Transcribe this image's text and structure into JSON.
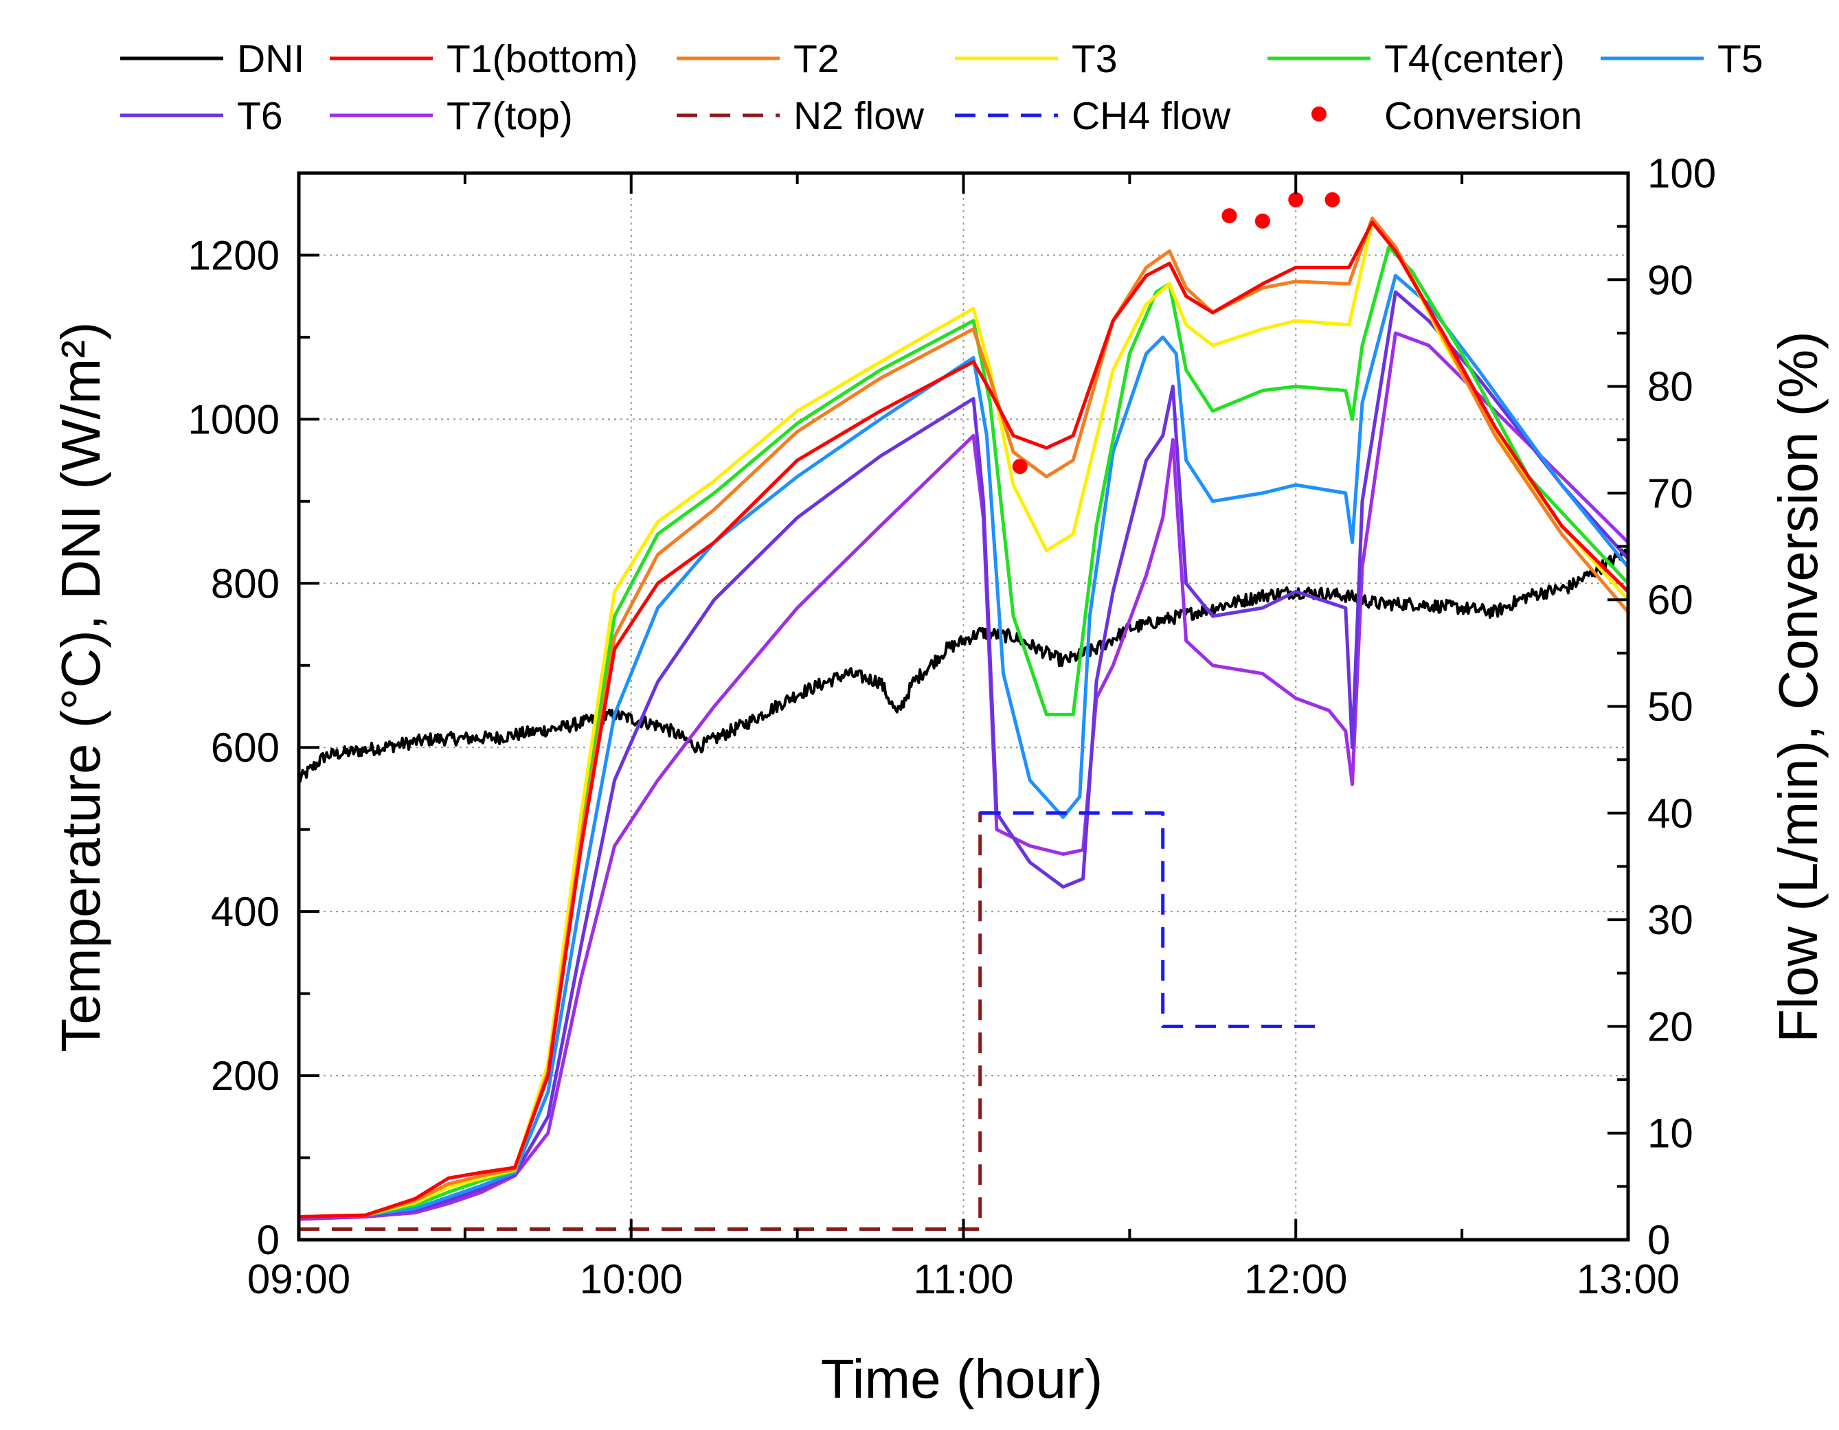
{
  "chart_data": {
    "type": "line",
    "xlabel": "Time (hour)",
    "ylabel": "Temperature (°C), DNI (W/m²)",
    "ylabel_right": "Flow (L/min), Conversion (%)",
    "x_ticks": [
      "09:00",
      "10:00",
      "11:00",
      "12:00",
      "13:00"
    ],
    "x_range_hours": [
      9,
      13
    ],
    "ylim": [
      0,
      1300
    ],
    "y_ticks": [
      0,
      200,
      400,
      600,
      800,
      1000,
      1200
    ],
    "ylim_right": [
      0,
      100
    ],
    "y_ticks_right": [
      0,
      10,
      20,
      30,
      40,
      50,
      60,
      70,
      80,
      90,
      100
    ],
    "legend": [
      "DNI",
      "T1(bottom)",
      "T2",
      "T3",
      "T4(center)",
      "T5",
      "T6",
      "T7(top)",
      "N2 flow",
      "CH4 flow",
      "Conversion"
    ],
    "series": [
      {
        "name": "DNI",
        "axis": "left",
        "color": "#000000",
        "noise": 8,
        "points": [
          [
            9.0,
            560
          ],
          [
            9.08,
            590
          ],
          [
            9.25,
            600
          ],
          [
            9.4,
            610
          ],
          [
            9.6,
            612
          ],
          [
            9.8,
            625
          ],
          [
            9.95,
            640
          ],
          [
            10.1,
            625
          ],
          [
            10.2,
            600
          ],
          [
            10.35,
            630
          ],
          [
            10.5,
            665
          ],
          [
            10.65,
            690
          ],
          [
            10.75,
            680
          ],
          [
            10.8,
            640
          ],
          [
            10.85,
            680
          ],
          [
            10.95,
            720
          ],
          [
            11.05,
            740
          ],
          [
            11.15,
            735
          ],
          [
            11.25,
            715
          ],
          [
            11.3,
            705
          ],
          [
            11.4,
            720
          ],
          [
            11.5,
            745
          ],
          [
            11.6,
            755
          ],
          [
            11.75,
            770
          ],
          [
            11.9,
            785
          ],
          [
            12.0,
            790
          ],
          [
            12.15,
            785
          ],
          [
            12.25,
            775
          ],
          [
            12.35,
            775
          ],
          [
            12.5,
            770
          ],
          [
            12.6,
            765
          ],
          [
            12.7,
            785
          ],
          [
            12.82,
            795
          ],
          [
            12.9,
            815
          ],
          [
            13.0,
            840
          ]
        ]
      },
      {
        "name": "T1(bottom)",
        "axis": "left",
        "color": "#ff0000",
        "points": [
          [
            9.0,
            28
          ],
          [
            9.2,
            30
          ],
          [
            9.35,
            50
          ],
          [
            9.45,
            75
          ],
          [
            9.55,
            82
          ],
          [
            9.65,
            88
          ],
          [
            9.75,
            200
          ],
          [
            9.85,
            480
          ],
          [
            9.95,
            720
          ],
          [
            10.08,
            800
          ],
          [
            10.25,
            850
          ],
          [
            10.5,
            950
          ],
          [
            10.75,
            1010
          ],
          [
            11.03,
            1070
          ],
          [
            11.08,
            1035
          ],
          [
            11.15,
            980
          ],
          [
            11.25,
            965
          ],
          [
            11.33,
            980
          ],
          [
            11.45,
            1120
          ],
          [
            11.55,
            1175
          ],
          [
            11.62,
            1190
          ],
          [
            11.67,
            1150
          ],
          [
            11.75,
            1130
          ],
          [
            11.9,
            1165
          ],
          [
            12.0,
            1185
          ],
          [
            12.16,
            1185
          ],
          [
            12.23,
            1240
          ],
          [
            12.3,
            1205
          ],
          [
            12.45,
            1100
          ],
          [
            12.6,
            990
          ],
          [
            12.8,
            870
          ],
          [
            13.0,
            790
          ]
        ]
      },
      {
        "name": "T2",
        "axis": "left",
        "color": "#f57d1f",
        "points": [
          [
            9.0,
            28
          ],
          [
            9.2,
            30
          ],
          [
            9.35,
            48
          ],
          [
            9.45,
            68
          ],
          [
            9.55,
            78
          ],
          [
            9.65,
            86
          ],
          [
            9.75,
            205
          ],
          [
            9.85,
            490
          ],
          [
            9.95,
            735
          ],
          [
            10.08,
            835
          ],
          [
            10.25,
            890
          ],
          [
            10.5,
            985
          ],
          [
            10.75,
            1050
          ],
          [
            11.03,
            1110
          ],
          [
            11.08,
            1050
          ],
          [
            11.15,
            960
          ],
          [
            11.25,
            930
          ],
          [
            11.33,
            950
          ],
          [
            11.45,
            1120
          ],
          [
            11.55,
            1185
          ],
          [
            11.62,
            1205
          ],
          [
            11.67,
            1160
          ],
          [
            11.75,
            1130
          ],
          [
            11.9,
            1160
          ],
          [
            12.0,
            1168
          ],
          [
            12.16,
            1165
          ],
          [
            12.23,
            1245
          ],
          [
            12.3,
            1210
          ],
          [
            12.45,
            1095
          ],
          [
            12.6,
            980
          ],
          [
            12.8,
            860
          ],
          [
            13.0,
            765
          ]
        ]
      },
      {
        "name": "T3",
        "axis": "left",
        "color": "#ffee00",
        "points": [
          [
            9.0,
            28
          ],
          [
            9.2,
            30
          ],
          [
            9.35,
            45
          ],
          [
            9.45,
            64
          ],
          [
            9.55,
            75
          ],
          [
            9.65,
            85
          ],
          [
            9.75,
            215
          ],
          [
            9.85,
            520
          ],
          [
            9.95,
            790
          ],
          [
            10.08,
            875
          ],
          [
            10.25,
            925
          ],
          [
            10.5,
            1010
          ],
          [
            10.75,
            1070
          ],
          [
            11.03,
            1135
          ],
          [
            11.08,
            1060
          ],
          [
            11.15,
            920
          ],
          [
            11.25,
            840
          ],
          [
            11.33,
            860
          ],
          [
            11.45,
            1060
          ],
          [
            11.55,
            1140
          ],
          [
            11.62,
            1165
          ],
          [
            11.67,
            1115
          ],
          [
            11.75,
            1090
          ],
          [
            11.9,
            1110
          ],
          [
            12.0,
            1120
          ],
          [
            12.16,
            1115
          ],
          [
            12.23,
            1240
          ],
          [
            12.3,
            1210
          ],
          [
            12.45,
            1090
          ],
          [
            12.6,
            985
          ],
          [
            12.8,
            870
          ],
          [
            13.0,
            780
          ]
        ]
      },
      {
        "name": "T4(center)",
        "axis": "left",
        "color": "#22e022",
        "points": [
          [
            9.0,
            28
          ],
          [
            9.2,
            30
          ],
          [
            9.35,
            42
          ],
          [
            9.45,
            58
          ],
          [
            9.55,
            72
          ],
          [
            9.65,
            84
          ],
          [
            9.75,
            205
          ],
          [
            9.85,
            500
          ],
          [
            9.95,
            760
          ],
          [
            10.08,
            860
          ],
          [
            10.25,
            910
          ],
          [
            10.5,
            995
          ],
          [
            10.75,
            1060
          ],
          [
            11.03,
            1120
          ],
          [
            11.08,
            1020
          ],
          [
            11.15,
            760
          ],
          [
            11.25,
            640
          ],
          [
            11.33,
            640
          ],
          [
            11.4,
            870
          ],
          [
            11.5,
            1080
          ],
          [
            11.58,
            1155
          ],
          [
            11.62,
            1165
          ],
          [
            11.67,
            1060
          ],
          [
            11.75,
            1010
          ],
          [
            11.9,
            1035
          ],
          [
            12.0,
            1040
          ],
          [
            12.15,
            1035
          ],
          [
            12.17,
            1000
          ],
          [
            12.2,
            1090
          ],
          [
            12.28,
            1210
          ],
          [
            12.35,
            1180
          ],
          [
            12.5,
            1080
          ],
          [
            12.7,
            930
          ],
          [
            13.0,
            800
          ]
        ]
      },
      {
        "name": "T5",
        "axis": "left",
        "color": "#1e90ff",
        "points": [
          [
            9.0,
            28
          ],
          [
            9.2,
            30
          ],
          [
            9.35,
            38
          ],
          [
            9.45,
            52
          ],
          [
            9.55,
            66
          ],
          [
            9.65,
            82
          ],
          [
            9.75,
            180
          ],
          [
            9.85,
            420
          ],
          [
            9.95,
            640
          ],
          [
            10.08,
            770
          ],
          [
            10.25,
            850
          ],
          [
            10.5,
            930
          ],
          [
            10.75,
            1000
          ],
          [
            11.03,
            1075
          ],
          [
            11.07,
            980
          ],
          [
            11.12,
            690
          ],
          [
            11.2,
            560
          ],
          [
            11.3,
            515
          ],
          [
            11.35,
            540
          ],
          [
            11.38,
            760
          ],
          [
            11.45,
            960
          ],
          [
            11.55,
            1080
          ],
          [
            11.6,
            1100
          ],
          [
            11.64,
            1080
          ],
          [
            11.67,
            950
          ],
          [
            11.75,
            900
          ],
          [
            11.9,
            910
          ],
          [
            12.0,
            920
          ],
          [
            12.15,
            910
          ],
          [
            12.17,
            850
          ],
          [
            12.2,
            1020
          ],
          [
            12.3,
            1175
          ],
          [
            12.4,
            1140
          ],
          [
            12.55,
            1060
          ],
          [
            12.8,
            920
          ],
          [
            13.0,
            820
          ]
        ]
      },
      {
        "name": "T6",
        "axis": "left",
        "color": "#6a33e0",
        "points": [
          [
            9.0,
            28
          ],
          [
            9.2,
            30
          ],
          [
            9.35,
            36
          ],
          [
            9.45,
            48
          ],
          [
            9.55,
            62
          ],
          [
            9.65,
            80
          ],
          [
            9.75,
            150
          ],
          [
            9.85,
            360
          ],
          [
            9.95,
            560
          ],
          [
            10.08,
            680
          ],
          [
            10.25,
            780
          ],
          [
            10.5,
            880
          ],
          [
            10.75,
            955
          ],
          [
            11.03,
            1025
          ],
          [
            11.06,
            900
          ],
          [
            11.1,
            520
          ],
          [
            11.2,
            460
          ],
          [
            11.3,
            430
          ],
          [
            11.36,
            440
          ],
          [
            11.4,
            680
          ],
          [
            11.45,
            790
          ],
          [
            11.55,
            950
          ],
          [
            11.6,
            980
          ],
          [
            11.63,
            1040
          ],
          [
            11.67,
            800
          ],
          [
            11.75,
            760
          ],
          [
            11.9,
            770
          ],
          [
            12.0,
            790
          ],
          [
            12.15,
            770
          ],
          [
            12.17,
            600
          ],
          [
            12.2,
            900
          ],
          [
            12.3,
            1155
          ],
          [
            12.4,
            1120
          ],
          [
            12.55,
            1050
          ],
          [
            12.8,
            920
          ],
          [
            13.0,
            830
          ]
        ]
      },
      {
        "name": "T7(top)",
        "axis": "left",
        "color": "#9e2ee8",
        "points": [
          [
            9.0,
            25
          ],
          [
            9.2,
            28
          ],
          [
            9.35,
            33
          ],
          [
            9.45,
            44
          ],
          [
            9.55,
            58
          ],
          [
            9.65,
            78
          ],
          [
            9.75,
            130
          ],
          [
            9.85,
            320
          ],
          [
            9.95,
            480
          ],
          [
            10.08,
            560
          ],
          [
            10.25,
            650
          ],
          [
            10.5,
            770
          ],
          [
            10.75,
            870
          ],
          [
            11.03,
            980
          ],
          [
            11.06,
            880
          ],
          [
            11.1,
            500
          ],
          [
            11.2,
            480
          ],
          [
            11.3,
            470
          ],
          [
            11.36,
            475
          ],
          [
            11.4,
            660
          ],
          [
            11.45,
            700
          ],
          [
            11.55,
            810
          ],
          [
            11.6,
            880
          ],
          [
            11.63,
            975
          ],
          [
            11.67,
            730
          ],
          [
            11.75,
            700
          ],
          [
            11.9,
            690
          ],
          [
            12.0,
            660
          ],
          [
            12.1,
            645
          ],
          [
            12.15,
            620
          ],
          [
            12.17,
            555
          ],
          [
            12.2,
            820
          ],
          [
            12.3,
            1105
          ],
          [
            12.4,
            1090
          ],
          [
            12.55,
            1030
          ],
          [
            12.8,
            930
          ],
          [
            13.0,
            850
          ]
        ]
      },
      {
        "name": "N2 flow",
        "axis": "right",
        "color": "#8b1a1a",
        "dash": "dashed",
        "points": [
          [
            9.0,
            1
          ],
          [
            11.05,
            1
          ],
          [
            11.05,
            40
          ],
          [
            11.1,
            40
          ]
        ]
      },
      {
        "name": "CH4 flow",
        "axis": "right",
        "color": "#1a1af0",
        "dash": "dashed",
        "points": [
          [
            11.05,
            40
          ],
          [
            11.6,
            40
          ],
          [
            11.6,
            20
          ],
          [
            12.08,
            20
          ]
        ]
      },
      {
        "name": "Conversion",
        "axis": "right",
        "color": "#ff0000",
        "marker": "dot",
        "points": [
          [
            11.17,
            72.5
          ],
          [
            11.8,
            96
          ],
          [
            11.9,
            95.5
          ],
          [
            12.0,
            97.5
          ],
          [
            12.11,
            97.5
          ]
        ]
      }
    ]
  }
}
